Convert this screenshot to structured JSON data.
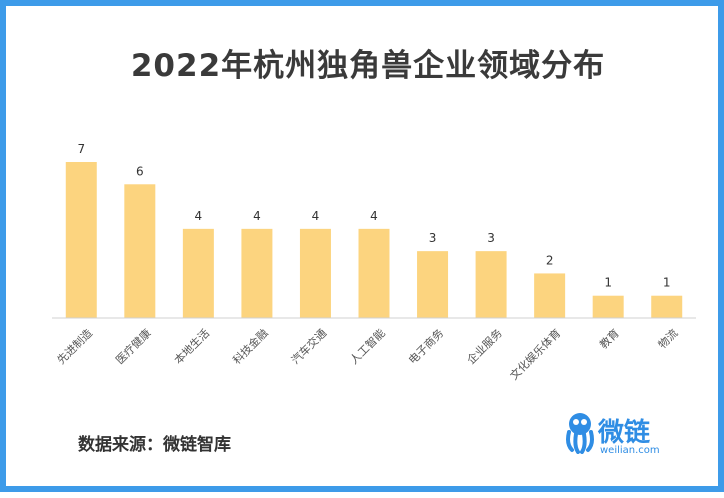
{
  "title": "2022年杭州独角兽企业领域分布",
  "source": "数据来源：微链智库",
  "logo": {
    "name": "微链",
    "url": "weilian.com"
  },
  "colors": {
    "border": "#3d9be9",
    "bar": "#fcd47f",
    "brand": "#2f8de4"
  },
  "chart_data": {
    "type": "bar",
    "title": "2022年杭州独角兽企业领域分布",
    "categories": [
      "先进制造",
      "医疗健康",
      "本地生活",
      "科技金融",
      "汽车交通",
      "人工智能",
      "电子商务",
      "企业服务",
      "文化娱乐体育",
      "教育",
      "物流"
    ],
    "values": [
      7,
      6,
      4,
      4,
      4,
      4,
      3,
      3,
      2,
      1,
      1
    ],
    "xlabel": "",
    "ylabel": "",
    "ylim": [
      0,
      7
    ],
    "grid": false,
    "legend": "none"
  }
}
